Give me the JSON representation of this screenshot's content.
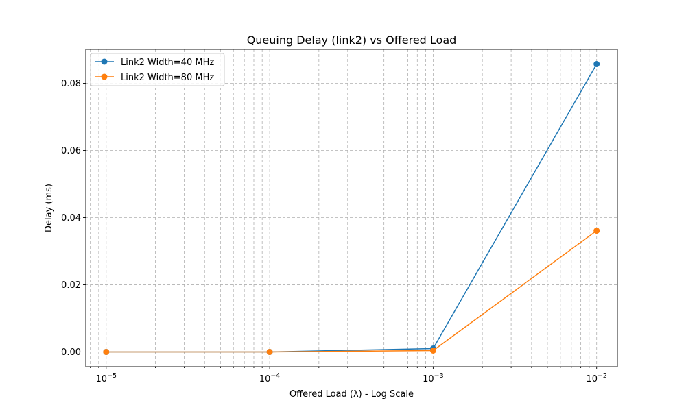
{
  "chart_data": {
    "type": "line",
    "title": "Queuing Delay (link2) vs Offered Load",
    "xlabel": "Offered Load (λ) - Log Scale",
    "ylabel": "Delay (ms)",
    "x_scale": "log",
    "xlim": [
      7.5e-06,
      0.0134
    ],
    "ylim": [
      -0.0044,
      0.0901
    ],
    "x": [
      1e-05,
      0.0001,
      0.001,
      0.01
    ],
    "x_ticks": [
      {
        "value": 1e-05,
        "base": "10",
        "exp": "−5"
      },
      {
        "value": 0.0001,
        "base": "10",
        "exp": "−4"
      },
      {
        "value": 0.001,
        "base": "10",
        "exp": "−3"
      },
      {
        "value": 0.01,
        "base": "10",
        "exp": "−2"
      }
    ],
    "y_ticks": [
      {
        "value": 0.0,
        "label": "0.00"
      },
      {
        "value": 0.02,
        "label": "0.02"
      },
      {
        "value": 0.04,
        "label": "0.04"
      },
      {
        "value": 0.06,
        "label": "0.06"
      },
      {
        "value": 0.08,
        "label": "0.08"
      }
    ],
    "series": [
      {
        "name": "Link2 Width=40 MHz",
        "color": "#1f77b4",
        "values": [
          0.0,
          0.0,
          0.001,
          0.0857
        ]
      },
      {
        "name": "Link2 Width=80 MHz",
        "color": "#ff7f0e",
        "values": [
          0.0,
          0.0,
          0.0004,
          0.0361
        ]
      }
    ],
    "grid": true,
    "legend_position": "top-left"
  }
}
